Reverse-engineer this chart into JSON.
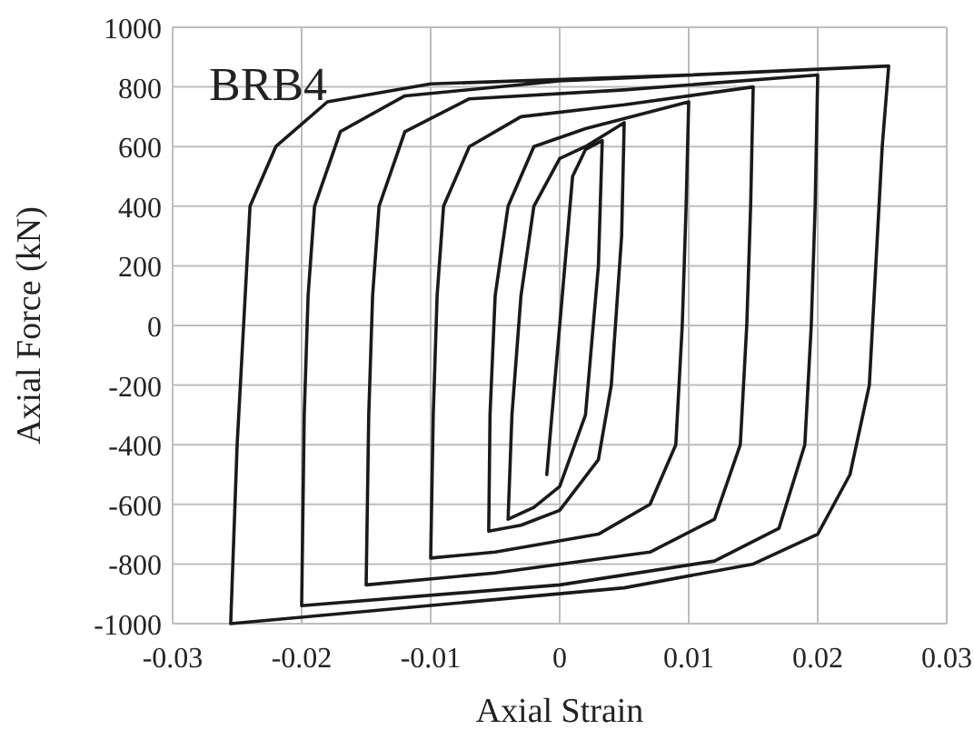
{
  "chart_data": {
    "type": "line",
    "xlabel": "Axial Strain",
    "ylabel": "Axial Force (kN)",
    "annotations": [
      "BRB4"
    ],
    "xlim": [
      -0.03,
      0.03
    ],
    "xticks": [
      -0.03,
      -0.02,
      -0.01,
      0,
      0.01,
      0.02,
      0.03
    ],
    "ylim": [
      -1000,
      1000
    ],
    "yticks": [
      -1000,
      -800,
      -600,
      -400,
      -200,
      0,
      200,
      400,
      600,
      800,
      1000
    ],
    "grid": true,
    "marker": "none",
    "line_style": "solid",
    "series": [
      {
        "color": "#1a1a1a",
        "x": [
          0,
          0.001,
          -0.001,
          0.001,
          0.002,
          0.0033,
          0.003,
          0.002,
          0,
          -0.002,
          -0.004,
          -0.0037,
          -0.003,
          -0.002,
          0,
          0.002,
          0.005,
          0.0048,
          0.004,
          0.003,
          0,
          -0.003,
          -0.0055,
          -0.0054,
          -0.005,
          -0.004,
          -0.002,
          0.002,
          0.01,
          0.0098,
          0.0095,
          0.009,
          0.007,
          0.003,
          -0.005,
          -0.01,
          -0.0098,
          -0.0095,
          -0.009,
          -0.007,
          -0.003,
          0.005,
          0.015,
          0.0148,
          0.0145,
          0.014,
          0.012,
          0.007,
          -0.005,
          -0.015,
          -0.0148,
          -0.0145,
          -0.014,
          -0.012,
          -0.007,
          0.005,
          0.02,
          0.0198,
          0.0195,
          0.019,
          0.017,
          0.012,
          0,
          -0.02,
          -0.0198,
          -0.0195,
          -0.019,
          -0.017,
          -0.012,
          0,
          0.0255,
          0.025,
          0.0245,
          0.024,
          0.0225,
          0.02,
          0.015,
          0.005,
          -0.0255,
          -0.025,
          -0.0245,
          -0.024,
          -0.022,
          -0.018,
          -0.01,
          0.01,
          0.0255
        ],
        "values": [
          0,
          500,
          -500,
          500,
          590,
          620,
          200,
          -300,
          -540,
          -610,
          -650,
          -300,
          100,
          400,
          560,
          600,
          680,
          300,
          -200,
          -450,
          -620,
          -670,
          -690,
          -300,
          100,
          400,
          600,
          660,
          750,
          400,
          0,
          -400,
          -600,
          -700,
          -760,
          -780,
          -300,
          100,
          400,
          600,
          700,
          740,
          800,
          400,
          0,
          -400,
          -650,
          -760,
          -830,
          -870,
          -300,
          100,
          400,
          650,
          760,
          790,
          840,
          400,
          0,
          -400,
          -680,
          -790,
          -870,
          -940,
          -300,
          100,
          400,
          650,
          770,
          820,
          870,
          600,
          200,
          -200,
          -500,
          -700,
          -800,
          -880,
          -1000,
          -400,
          0,
          400,
          600,
          750,
          810,
          840,
          870
        ]
      }
    ]
  }
}
